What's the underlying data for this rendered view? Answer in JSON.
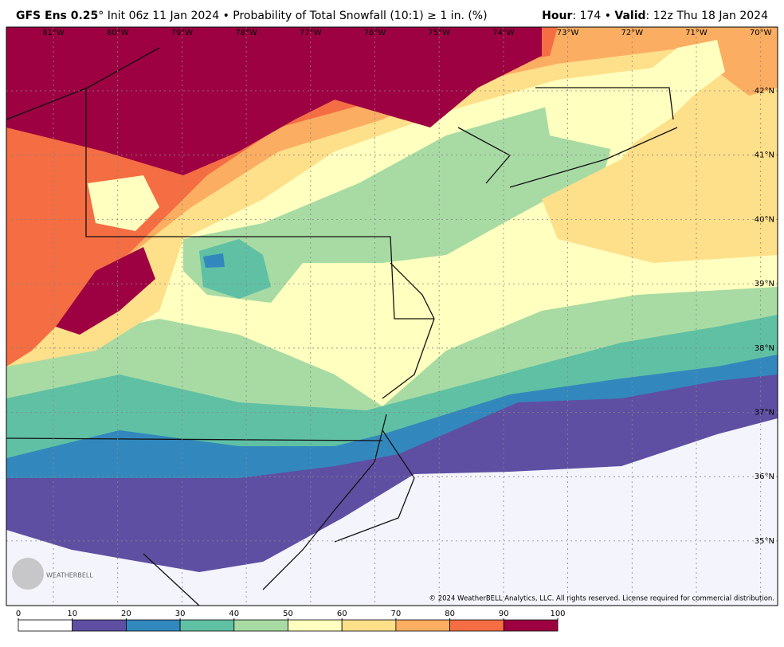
{
  "header": {
    "title_bold": "GFS Ens 0.25",
    "title_rest": "° Init 06z 11 Jan 2024 • Probability of Total Snowfall (10:1) ≥ 1 in. (%)",
    "hour_label": "Hour",
    "hour_value": ": 174 • ",
    "valid_label": "Valid",
    "valid_value": ": 12z Thu 18 Jan 2024"
  },
  "map": {
    "lon_labels": [
      "81°W",
      "80°W",
      "79°W",
      "78°W",
      "77°W",
      "76°W",
      "75°W",
      "74°W",
      "73°W",
      "72°W",
      "71°W",
      "70°W"
    ],
    "lat_labels": [
      "42°N",
      "41°N",
      "40°N",
      "39°N",
      "38°N",
      "37°N",
      "36°N",
      "35°N"
    ],
    "copyright": "© 2024 WeatherBELL Analytics, LLC. All rights reserved. License required for commercial distribution.",
    "logo": "WEATHERBELL"
  },
  "colorbar": {
    "ticks": [
      0,
      10,
      20,
      30,
      40,
      50,
      60,
      70,
      80,
      90,
      100
    ],
    "colors": [
      "#ffffff",
      "#5e4fa2",
      "#3288bd",
      "#5fc0a4",
      "#a8dba4",
      "#ffffbf",
      "#fedf8a",
      "#fbad61",
      "#f46d43",
      "#9e0142"
    ]
  }
}
